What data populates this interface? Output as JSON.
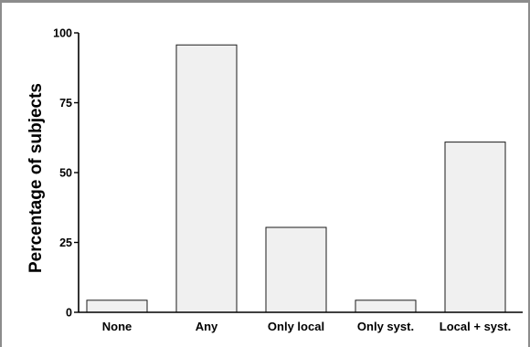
{
  "chart_data": {
    "type": "bar",
    "title": "",
    "xlabel": "",
    "ylabel": "Percentage of subjects",
    "categories": [
      "None",
      "Any",
      "Only local",
      "Only syst.",
      "Local + syst."
    ],
    "values": [
      4.3,
      95.7,
      30.4,
      4.3,
      60.9
    ],
    "ylim": [
      0,
      100
    ],
    "yticks": [
      0,
      25,
      50,
      75,
      100
    ],
    "grid": false,
    "legend": "none",
    "colors": {
      "bar_fill": "#f0f0f0",
      "bar_stroke": "#1a1a1a",
      "axis": "#000000"
    }
  }
}
